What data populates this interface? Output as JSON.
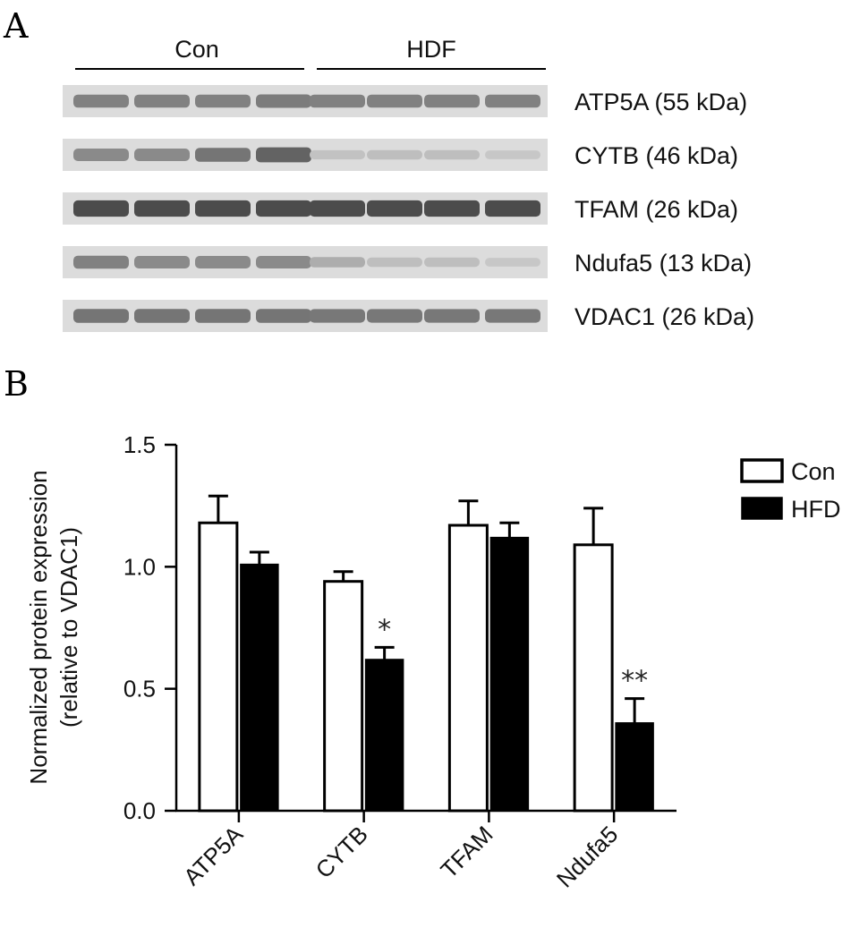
{
  "panels": {
    "a": "A",
    "b": "B"
  },
  "blot": {
    "groups": [
      "Con",
      "HDF"
    ],
    "rows": [
      {
        "label": "ATP5A (55 kDa)",
        "intensity": [
          0.55,
          0.55,
          0.55,
          0.58,
          0.55,
          0.55,
          0.55,
          0.55
        ]
      },
      {
        "label": "CYTB (46 kDa)",
        "intensity": [
          0.5,
          0.5,
          0.62,
          0.72,
          0.18,
          0.2,
          0.2,
          0.15
        ]
      },
      {
        "label": "TFAM (26 kDa)",
        "intensity": [
          0.85,
          0.85,
          0.85,
          0.85,
          0.85,
          0.85,
          0.85,
          0.85
        ]
      },
      {
        "label": "Ndufa5 (13 kDa)",
        "intensity": [
          0.55,
          0.5,
          0.5,
          0.5,
          0.3,
          0.2,
          0.2,
          0.15
        ]
      },
      {
        "label": "VDAC1 (26 kDa)",
        "intensity": [
          0.62,
          0.62,
          0.62,
          0.62,
          0.6,
          0.6,
          0.6,
          0.6
        ]
      }
    ]
  },
  "chart_data": {
    "type": "bar",
    "ylabel": [
      "Normalized protein expression",
      "(relative to VDAC1)"
    ],
    "xlabel": "",
    "categories": [
      "ATP5A",
      "CYTB",
      "TFAM",
      "Ndufa5"
    ],
    "ylim": [
      0,
      1.5
    ],
    "yticks": [
      0.0,
      0.5,
      1.0,
      1.5
    ],
    "ytick_labels": [
      "0.0",
      "0.5",
      "1.0",
      "1.5"
    ],
    "series": [
      {
        "name": "Con",
        "fill": "#ffffff",
        "values": [
          1.18,
          0.94,
          1.17,
          1.09
        ],
        "errors": [
          0.11,
          0.04,
          0.1,
          0.15
        ]
      },
      {
        "name": "HFD",
        "fill": "#000000",
        "values": [
          1.01,
          0.62,
          1.12,
          0.36
        ],
        "errors": [
          0.05,
          0.05,
          0.06,
          0.1
        ]
      }
    ],
    "annotations": [
      {
        "category": "CYTB",
        "series": "HFD",
        "text": "*"
      },
      {
        "category": "Ndufa5",
        "series": "HFD",
        "text": "**"
      }
    ],
    "legend": "top-right",
    "grid": false
  }
}
